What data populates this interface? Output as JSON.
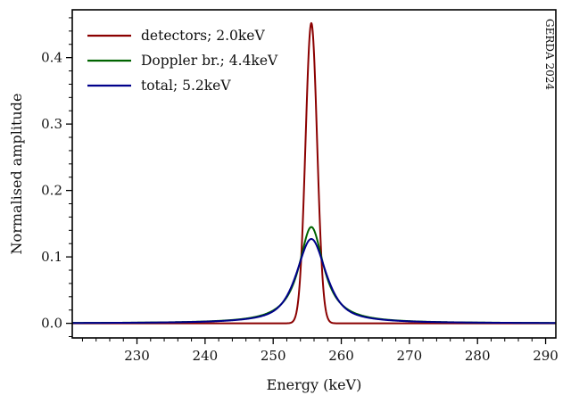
{
  "chart_data": {
    "type": "line",
    "xlabel": "Energy (keV)",
    "ylabel": "Normalised amplitude",
    "xlim": [
      220.5,
      291.5
    ],
    "ylim": [
      -0.022,
      0.472
    ],
    "xticks": [
      230,
      240,
      250,
      260,
      270,
      280,
      290
    ],
    "yticks": [
      0.0,
      0.1,
      0.2,
      0.3,
      0.4
    ],
    "xtick_labels": [
      "230",
      "240",
      "250",
      "260",
      "270",
      "280",
      "290"
    ],
    "ytick_labels": [
      "0.0",
      "0.1",
      "0.2",
      "0.3",
      "0.4"
    ],
    "grid": false,
    "legend_position": "top-left",
    "annotation": "GERDA 2024",
    "center_keV": 255.6,
    "series": [
      {
        "name": "detectors; 2.0keV",
        "color": "#8b0000",
        "shape": "gaussian",
        "fwhm_keV": 2.0,
        "peak_amplitude": 0.452
      },
      {
        "name": "Doppler br.; 4.4keV",
        "color": "#006400",
        "shape": "lorentzian",
        "fwhm_keV": 4.4,
        "peak_amplitude": 0.145
      },
      {
        "name": "total; 5.2keV",
        "color": "#00008b",
        "shape": "voigt",
        "fwhm_keV": 5.2,
        "peak_amplitude": 0.127
      }
    ]
  }
}
